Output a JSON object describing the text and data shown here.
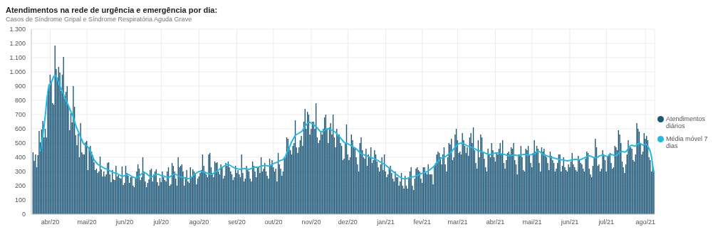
{
  "chart_data": {
    "type": "bar",
    "title": "Atendimentos na rede de urgência e emergência por dia:",
    "subtitle": "Casos de Síndrome Gripal e Síndrome Respiratória Aguda Grave",
    "categories": [
      null,
      null,
      null,
      null,
      null,
      null,
      null,
      null,
      null,
      null,
      null,
      null,
      null,
      null,
      "abr/20",
      null,
      null,
      null,
      null,
      null,
      null,
      null,
      null,
      null,
      null,
      null,
      null,
      null,
      null,
      null,
      null,
      null,
      null,
      null,
      null,
      null,
      null,
      null,
      null,
      null,
      null,
      null,
      null,
      null,
      "mai/20",
      null,
      null,
      null,
      null,
      null,
      null,
      null,
      null,
      null,
      null,
      null,
      null,
      null,
      null,
      null,
      null,
      null,
      null,
      null,
      null,
      null,
      null,
      null,
      null,
      null,
      null,
      null,
      null,
      null,
      null,
      "jun/20",
      null,
      null,
      null,
      null,
      null,
      null,
      null,
      null,
      null,
      null,
      null,
      null,
      null,
      null,
      null,
      null,
      null,
      null,
      null,
      null,
      null,
      null,
      null,
      null,
      null,
      null,
      null,
      null,
      null,
      "jul/20",
      null,
      null,
      null,
      null,
      null,
      null,
      null,
      null,
      null,
      null,
      null,
      null,
      null,
      null,
      null,
      null,
      null,
      null,
      null,
      null,
      null,
      null,
      null,
      null,
      null,
      null,
      null,
      null,
      null,
      null,
      "ago/20",
      null,
      null,
      null,
      null,
      null,
      null,
      null,
      null,
      null,
      null,
      null,
      null,
      null,
      null,
      null,
      null,
      null,
      null,
      null,
      null,
      null,
      null,
      null,
      null,
      null,
      null,
      null,
      null,
      null,
      null,
      "set/20",
      null,
      null,
      null,
      null,
      null,
      null,
      null,
      null,
      null,
      null,
      null,
      null,
      null,
      null,
      null,
      null,
      null,
      null,
      null,
      null,
      null,
      null,
      null,
      null,
      null,
      null,
      null,
      null,
      null,
      "out/20",
      null,
      null,
      null,
      null,
      null,
      null,
      null,
      null,
      null,
      null,
      null,
      null,
      null,
      null,
      null,
      null,
      null,
      null,
      null,
      null,
      null,
      null,
      null,
      null,
      null,
      null,
      null,
      null,
      null,
      null,
      "nov/20",
      null,
      null,
      null,
      null,
      null,
      null,
      null,
      null,
      null,
      null,
      null,
      null,
      null,
      null,
      null,
      null,
      null,
      null,
      null,
      null,
      null,
      null,
      null,
      null,
      null,
      null,
      null,
      null,
      null,
      "dez/20",
      null,
      null,
      null,
      null,
      null,
      null,
      null,
      null,
      null,
      null,
      null,
      null,
      null,
      null,
      null,
      null,
      null,
      null,
      null,
      null,
      null,
      null,
      null,
      null,
      null,
      null,
      null,
      null,
      null,
      null,
      "jan/21",
      null,
      null,
      null,
      null,
      null,
      null,
      null,
      null,
      null,
      null,
      null,
      null,
      null,
      null,
      null,
      null,
      null,
      null,
      null,
      null,
      null,
      null,
      null,
      null,
      null,
      null,
      null,
      null,
      null,
      "fev/21",
      null,
      null,
      null,
      null,
      null,
      null,
      null,
      null,
      null,
      null,
      null,
      null,
      null,
      null,
      null,
      null,
      null,
      null,
      null,
      null,
      null,
      null,
      null,
      null,
      null,
      null,
      null,
      null,
      "mar/21",
      null,
      null,
      null,
      null,
      null,
      null,
      null,
      null,
      null,
      null,
      null,
      null,
      null,
      null,
      null,
      null,
      null,
      null,
      null,
      null,
      null,
      null,
      null,
      null,
      null,
      null,
      null,
      null,
      null,
      null,
      "abr/21",
      null,
      null,
      null,
      null,
      null,
      null,
      null,
      null,
      null,
      null,
      null,
      null,
      null,
      null,
      null,
      null,
      null,
      null,
      null,
      null,
      null,
      null,
      null,
      null,
      null,
      null,
      null,
      null,
      null,
      "mai/21",
      null,
      null,
      null,
      null,
      null,
      null,
      null,
      null,
      null,
      null,
      null,
      null,
      null,
      null,
      null,
      null,
      null,
      null,
      null,
      null,
      null,
      null,
      null,
      null,
      null,
      null,
      null,
      null,
      null,
      null,
      "jun/21",
      null,
      null,
      null,
      null,
      null,
      null,
      null,
      null,
      null,
      null,
      null,
      null,
      null,
      null,
      null,
      null,
      null,
      null,
      null,
      null,
      null,
      null,
      null,
      null,
      null,
      null,
      null,
      null,
      null,
      "jul/21",
      null,
      null,
      null,
      null,
      null,
      null,
      null,
      null,
      null,
      null,
      null,
      null,
      null,
      null,
      null,
      null,
      null,
      null,
      null,
      null,
      null,
      null,
      null,
      null,
      null,
      null,
      null,
      null,
      null,
      null,
      null,
      "ago/21",
      null,
      null,
      null,
      null,
      null,
      null,
      null
    ],
    "series": [
      {
        "name": "Atendimentos diários",
        "color": "#1b5677",
        "values": [
          435,
          375,
          420,
          330,
          415,
          585,
          505,
          595,
          655,
          540,
          600,
          540,
          840,
          890,
          980,
          935,
          780,
          770,
          1185,
          1020,
          960,
          1035,
          995,
          865,
          980,
          1105,
          810,
          860,
          900,
          760,
          590,
          710,
          645,
          900,
          755,
          555,
          485,
          565,
          400,
          640,
          435,
          420,
          420,
          505,
          515,
          310,
          470,
          480,
          440,
          415,
          365,
          310,
          320,
          290,
          300,
          405,
          315,
          265,
          300,
          265,
          280,
          360,
          365,
          280,
          225,
          310,
          245,
          240,
          340,
          265,
          275,
          255,
          250,
          335,
          205,
          220,
          340,
          290,
          270,
          220,
          260,
          265,
          200,
          190,
          250,
          300,
          350,
          320,
          240,
          260,
          400,
          300,
          230,
          190,
          220,
          245,
          310,
          320,
          230,
          280,
          300,
          315,
          225,
          200,
          255,
          225,
          300,
          260,
          240,
          230,
          300,
          330,
          200,
          210,
          360,
          340,
          300,
          250,
          200,
          400,
          330,
          340,
          350,
          300,
          200,
          260,
          310,
          230,
          220,
          330,
          260,
          315,
          300,
          280,
          210,
          250,
          265,
          290,
          310,
          420,
          340,
          300,
          280,
          260,
          420,
          430,
          330,
          290,
          260,
          370,
          360,
          365,
          300,
          280,
          350,
          330,
          250,
          270,
          360,
          340,
          370,
          330,
          300,
          280,
          240,
          260,
          340,
          290,
          310,
          280,
          260,
          420,
          290,
          230,
          250,
          340,
          310,
          300,
          250,
          230,
          370,
          340,
          300,
          260,
          330,
          330,
          290,
          400,
          300,
          320,
          360,
          300,
          270,
          250,
          390,
          340,
          380,
          330,
          300,
          320,
          230,
          430,
          350,
          320,
          270,
          300,
          390,
          400,
          540,
          530,
          470,
          450,
          420,
          480,
          500,
          660,
          470,
          430,
          470,
          520,
          550,
          480,
          650,
          740,
          600,
          720,
          700,
          560,
          600,
          650,
          650,
          600,
          780,
          540,
          500,
          520,
          580,
          560,
          600,
          680,
          700,
          600,
          500,
          610,
          640,
          560,
          700,
          540,
          470,
          600,
          550,
          560,
          500,
          480,
          380,
          390,
          500,
          630,
          420,
          380,
          400,
          560,
          520,
          470,
          460,
          400,
          350,
          300,
          500,
          540,
          450,
          400,
          390,
          460,
          340,
          420,
          400,
          470,
          360,
          380,
          450,
          420,
          370,
          330,
          300,
          350,
          400,
          310,
          420,
          300,
          260,
          280,
          320,
          340,
          290,
          250,
          230,
          300,
          260,
          260,
          200,
          230,
          290,
          200,
          180,
          270,
          200,
          180,
          260,
          300,
          330,
          200,
          170,
          250,
          320,
          330,
          310,
          300,
          250,
          220,
          330,
          330,
          290,
          280,
          350,
          280,
          280,
          280,
          210,
          340,
          360,
          420,
          440,
          430,
          400,
          350,
          420,
          470,
          350,
          300,
          400,
          500,
          490,
          530,
          380,
          400,
          560,
          600,
          520,
          430,
          440,
          420,
          570,
          520,
          480,
          430,
          470,
          410,
          540,
          570,
          500,
          610,
          450,
          360,
          320,
          520,
          400,
          560,
          540,
          430,
          390,
          330,
          300,
          460,
          420,
          400,
          500,
          450,
          400,
          370,
          430,
          420,
          460,
          500,
          420,
          520,
          360,
          320,
          380,
          430,
          440,
          420,
          470,
          460,
          500,
          380,
          350,
          280,
          420,
          420,
          480,
          400,
          310,
          300,
          460,
          450,
          480,
          420,
          360,
          330,
          430,
          520,
          440,
          480,
          460,
          360,
          300,
          470,
          440,
          460,
          420,
          400,
          360,
          310,
          440,
          410,
          380,
          360,
          300,
          320,
          360,
          420,
          420,
          300,
          340,
          400,
          330,
          310,
          300,
          350,
          330,
          370,
          430,
          350,
          330,
          310,
          300,
          410,
          380,
          360,
          350,
          320,
          300,
          390,
          440,
          430,
          320,
          280,
          260,
          340,
          400,
          530,
          470,
          340,
          350,
          300,
          320,
          450,
          420,
          380,
          300,
          410,
          420,
          430,
          360,
          320,
          330,
          480,
          470,
          450,
          590,
          560,
          500,
          370,
          330,
          290,
          350,
          420,
          520,
          480,
          470,
          460,
          380,
          370,
          420,
          640,
          600,
          580,
          500,
          420,
          440,
          570,
          530,
          550,
          520,
          400,
          380,
          300,
          350,
          300
        ]
      },
      {
        "name": "Média móvel 7 dias",
        "type": "line",
        "color": "#1fb9e8",
        "values": [
          null,
          null,
          null,
          null,
          null,
          null,
          440,
          500,
          560,
          620,
          700,
          790,
          860,
          910,
          910,
          930,
          950,
          970,
          975,
          965,
          945,
          920,
          900,
          880,
          860,
          840,
          820,
          800,
          780,
          760,
          740,
          720,
          700,
          680,
          650,
          620,
          600,
          580,
          560,
          540,
          520,
          500,
          490,
          485,
          480,
          470,
          460,
          440,
          420,
          400,
          380,
          370,
          360,
          350,
          345,
          340,
          335,
          330,
          325,
          320,
          318,
          315,
          310,
          305,
          300,
          295,
          292,
          290,
          290,
          285,
          280,
          275,
          270,
          268,
          268,
          270,
          275,
          278,
          280,
          275,
          270,
          265,
          260,
          258,
          255,
          255,
          260,
          268,
          278,
          285,
          290,
          292,
          290,
          285,
          278,
          270,
          265,
          262,
          265,
          270,
          275,
          280,
          282,
          280,
          275,
          272,
          270,
          268,
          265,
          262,
          260,
          258,
          262,
          268,
          275,
          280,
          282,
          280,
          275,
          270,
          265,
          262,
          260,
          258,
          255,
          252,
          250,
          250,
          252,
          255,
          260,
          268,
          278,
          285,
          290,
          295,
          300,
          302,
          300,
          298,
          295,
          292,
          290,
          288,
          285,
          282,
          280,
          282,
          288,
          295,
          300,
          305,
          310,
          318,
          325,
          330,
          335,
          340,
          345,
          350,
          348,
          345,
          340,
          335,
          330,
          325,
          322,
          320,
          318,
          316,
          315,
          318,
          320,
          322,
          320,
          318,
          316,
          315,
          318,
          322,
          325,
          328,
          330,
          330,
          330,
          332,
          335,
          338,
          340,
          342,
          345,
          342,
          340,
          338,
          340,
          345,
          350,
          355,
          360,
          362,
          365,
          370,
          375,
          378,
          380,
          385,
          395,
          410,
          430,
          450,
          470,
          490,
          510,
          525,
          540,
          555,
          560,
          565,
          570,
          575,
          580,
          590,
          605,
          620,
          630,
          640,
          645,
          645,
          640,
          635,
          630,
          620,
          615,
          605,
          595,
          585,
          580,
          580,
          585,
          590,
          595,
          600,
          600,
          598,
          595,
          590,
          585,
          580,
          575,
          565,
          555,
          545,
          535,
          525,
          515,
          505,
          500,
          498,
          495,
          490,
          485,
          480,
          475,
          470,
          465,
          458,
          450,
          440,
          430,
          425,
          420,
          418,
          415,
          412,
          410,
          405,
          400,
          398,
          395,
          392,
          390,
          385,
          380,
          375,
          370,
          365,
          360,
          355,
          350,
          345,
          338,
          330,
          322,
          315,
          308,
          300,
          292,
          285,
          278,
          272,
          265,
          260,
          255,
          250,
          248,
          250,
          250,
          252,
          255,
          258,
          260,
          262,
          263,
          265,
          268,
          272,
          276,
          280,
          284,
          288,
          290,
          292,
          295,
          300,
          305,
          310,
          318,
          325,
          332,
          340,
          350,
          360,
          370,
          380,
          390,
          395,
          400,
          402,
          405,
          410,
          418,
          425,
          430,
          440,
          450,
          460,
          470,
          480,
          490,
          495,
          498,
          500,
          498,
          495,
          490,
          485,
          480,
          478,
          475,
          470,
          468,
          465,
          460,
          455,
          450,
          448,
          445,
          440,
          438,
          435,
          432,
          428,
          425,
          422,
          420,
          420,
          422,
          425,
          428,
          430,
          432,
          430,
          428,
          426,
          424,
          422,
          420,
          418,
          415,
          412,
          410,
          410,
          412,
          414,
          415,
          415,
          414,
          412,
          412,
          412,
          415,
          418,
          420,
          420,
          418,
          416,
          415,
          416,
          418,
          420,
          422,
          424,
          430,
          438,
          442,
          440,
          435,
          428,
          420,
          415,
          412,
          410,
          408,
          405,
          402,
          400,
          398,
          395,
          392,
          390,
          388,
          385,
          384,
          383,
          382,
          380,
          378,
          376,
          375,
          376,
          378,
          380,
          382,
          384,
          385,
          385,
          384,
          383,
          382,
          384,
          388,
          392,
          396,
          400,
          405,
          410,
          410,
          408,
          404,
          400,
          398,
          396,
          398,
          402,
          408,
          412,
          414,
          414,
          412,
          410,
          408,
          405,
          410,
          416,
          420,
          418,
          414,
          410,
          412,
          418,
          426,
          435,
          440,
          440,
          438,
          436,
          440,
          450,
          462,
          475,
          482,
          485,
          482,
          478,
          480,
          488,
          495,
          498,
          496,
          490,
          485,
          488,
          492,
          490,
          478,
          460,
          440,
          400,
          340,
          290
        ]
      }
    ],
    "ylim": [
      0,
      1300
    ],
    "yticks": [
      0,
      100,
      200,
      300,
      400,
      500,
      600,
      700,
      800,
      900,
      {
        "value": 1000,
        "label": "1.000"
      },
      {
        "value": 1100,
        "label": "1.100"
      },
      {
        "value": 1200,
        "label": "1.200"
      },
      {
        "value": 1300,
        "label": "1.300"
      }
    ],
    "grid": true,
    "legend": "right"
  }
}
